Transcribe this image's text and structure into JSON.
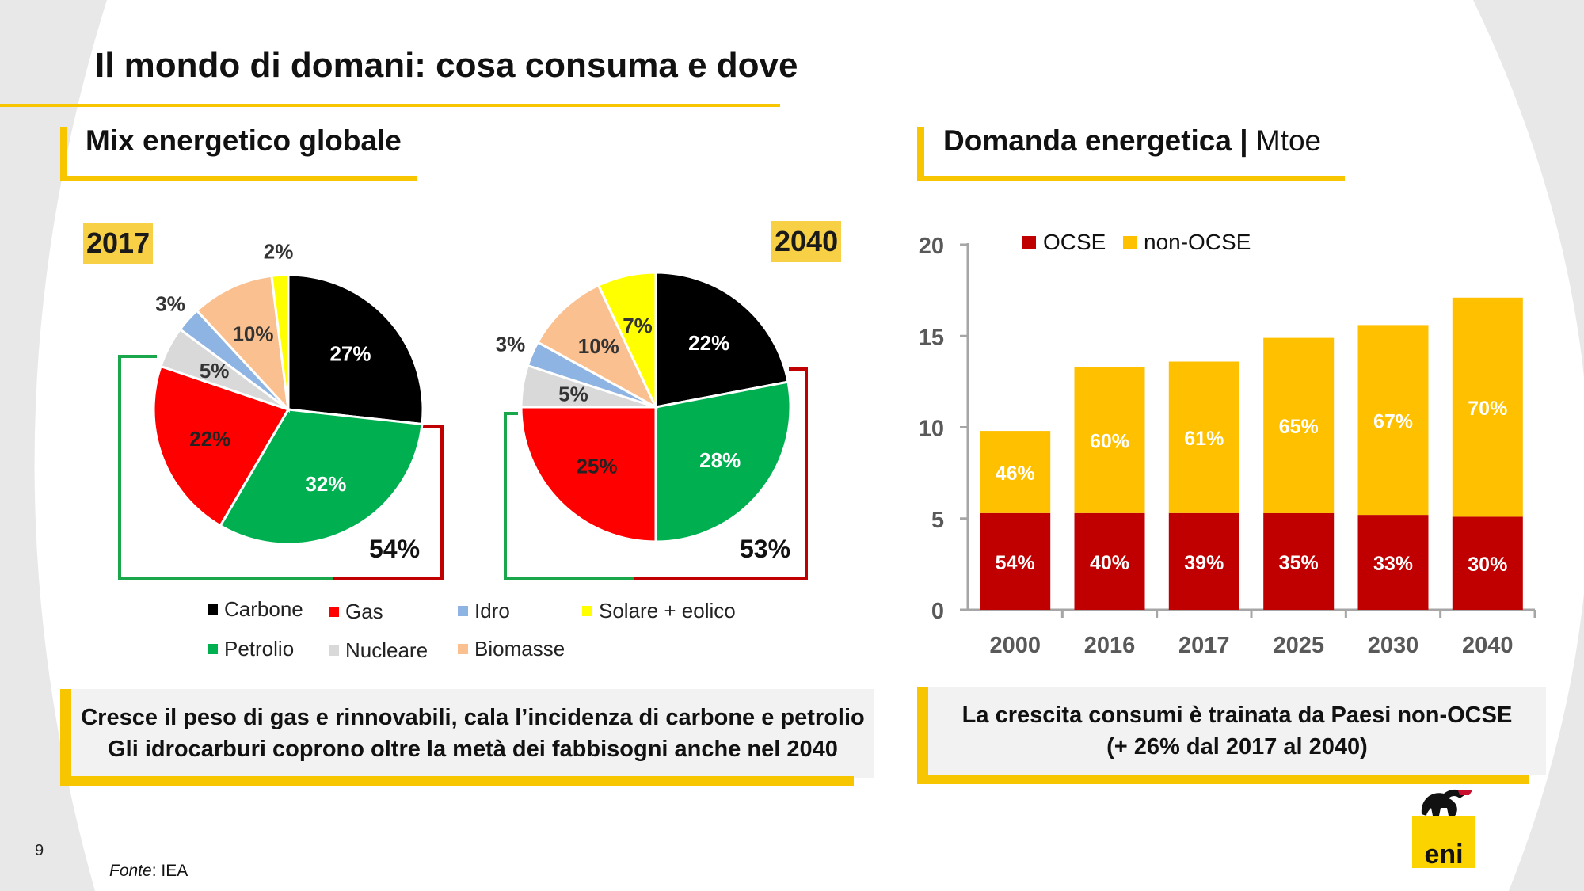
{
  "page": {
    "title": "Il mondo di domani: cosa consuma e dove",
    "page_number": "9",
    "source_label": "Fonte",
    "source_value": ": IEA"
  },
  "left_section": {
    "title": "Mix energetico globale",
    "callout_line1": "Cresce il peso di gas e rinnovabili, cala l’incidenza di carbone e petrolio",
    "callout_line2": "Gli idrocarburi coprono oltre la metà dei fabbisogni anche nel 2040"
  },
  "right_section": {
    "title_main": "Domanda energetica",
    "title_sep": "|",
    "title_unit": "Mtoe",
    "callout_line1": "La crescita consumi è trainata da Paesi non-OCSE",
    "callout_line2": "(+ 26% dal 2017 al 2040)"
  },
  "logo": {
    "text": "eni",
    "colors": {
      "yellow": "#fbd400",
      "black": "#111111",
      "red": "#c8102e"
    }
  },
  "colors": {
    "accent": "#f7c600",
    "carbone": "#000000",
    "petrolio": "#00b050",
    "gas": "#ff0000",
    "nucleare": "#d9d9d9",
    "idro": "#8eb4e3",
    "biomasse": "#fac090",
    "solare": "#ffff00",
    "ocse": "#c00000",
    "non_ocse": "#ffc000",
    "bracket_green": "#1aa64a",
    "bracket_red": "#c00000"
  },
  "chart_data": [
    {
      "type": "pie",
      "title": "2017",
      "labels": [
        "Carbone",
        "Petrolio",
        "Gas",
        "Nucleare",
        "Idro",
        "Biomasse",
        "Solare + eolico"
      ],
      "values": [
        27,
        32,
        22,
        5,
        3,
        10,
        2
      ],
      "value_labels": [
        "27%",
        "32%",
        "22%",
        "5%",
        "3%",
        "10%",
        "2%"
      ],
      "bracket_label": "54%"
    },
    {
      "type": "pie",
      "title": "2040",
      "labels": [
        "Carbone",
        "Petrolio",
        "Gas",
        "Nucleare",
        "Idro",
        "Biomasse",
        "Solare + eolico"
      ],
      "values": [
        22,
        28,
        25,
        5,
        3,
        10,
        7
      ],
      "value_labels": [
        "22%",
        "28%",
        "25%",
        "5%",
        "3%",
        "10%",
        "7%"
      ],
      "bracket_label": "53%"
    },
    {
      "type": "bar",
      "stacked": true,
      "categories": [
        "2000",
        "2016",
        "2017",
        "2025",
        "2030",
        "2040"
      ],
      "series": [
        {
          "name": "OCSE",
          "values": [
            5.3,
            5.3,
            5.3,
            5.3,
            5.2,
            5.1
          ],
          "labels": [
            "54%",
            "40%",
            "39%",
            "35%",
            "33%",
            "30%"
          ]
        },
        {
          "name": "non-OCSE",
          "values": [
            4.5,
            8.0,
            8.3,
            9.6,
            10.4,
            12.0
          ],
          "labels": [
            "46%",
            "60%",
            "61%",
            "65%",
            "67%",
            "70%"
          ]
        }
      ],
      "ylim": [
        0,
        20
      ],
      "yticks": [
        "0",
        "5",
        "10",
        "15",
        "20"
      ]
    }
  ],
  "pie_legend": [
    "Carbone",
    "Gas",
    "Idro",
    "Solare + eolico",
    "Petrolio",
    "Nucleare",
    "Biomasse"
  ]
}
